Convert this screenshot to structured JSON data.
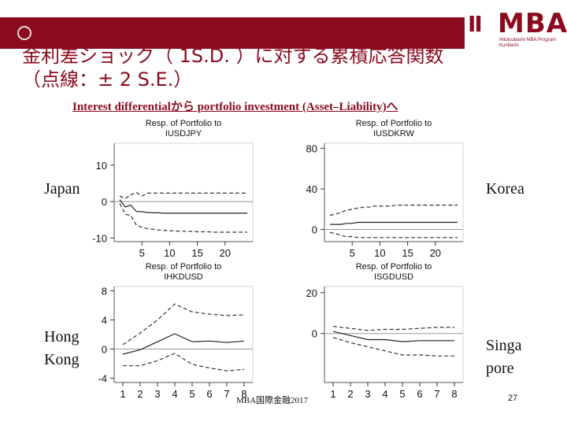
{
  "slide": {
    "title_line1": "金利差ショック（ 1S.D. ）に対する累積応答関数",
    "title_line2": "（点線：± 2 S.E.）",
    "subtitle": "Interest differentialから portfolio investment (Asset–Liability)へ",
    "footer": "MBA国際金融2017",
    "page_number": "27"
  },
  "logo": {
    "mark": "II",
    "text": "MBA",
    "sub": "Hitotsubashi MBA Program\nKunitachi"
  },
  "labels": {
    "japan": "Japan",
    "korea": "Korea",
    "hongkong": "Hong\nKong",
    "singapore": "Singa\npore"
  },
  "colors": {
    "brand": "#8b0a1e",
    "line": "#222222",
    "band": "#333333",
    "zero_line": "#9a9a9a"
  },
  "chart_data": [
    {
      "type": "line",
      "title": "Resp. of Portfolio to IUSDJPY",
      "title_lines": [
        "Resp. of Portfolio to",
        "IUSDJPY"
      ],
      "x": [
        1,
        2,
        3,
        4,
        5,
        6,
        7,
        8,
        9,
        10,
        11,
        12,
        13,
        14,
        15,
        16,
        17,
        18,
        19,
        20,
        21,
        22,
        23,
        24
      ],
      "xlim": [
        0,
        25
      ],
      "ylim": [
        -11,
        16
      ],
      "xticks": [
        "5",
        "10",
        "15",
        "20"
      ],
      "xtick_values": [
        5,
        10,
        15,
        20
      ],
      "yticks": [
        "-10",
        "0",
        "10"
      ],
      "ytick_values": [
        -10,
        0,
        10
      ],
      "series": [
        {
          "name": "response",
          "style": "solid",
          "values": [
            0.5,
            -1.5,
            -1,
            -2.7,
            -2.8,
            -3,
            -3.1,
            -3.1,
            -3.2,
            -3.2,
            -3.2,
            -3.2,
            -3.2,
            -3.2,
            -3.2,
            -3.2,
            -3.2,
            -3.2,
            -3.2,
            -3.2,
            -3.2,
            -3.2,
            -3.2,
            -3.2
          ]
        },
        {
          "name": "upper 2 S.E.",
          "style": "dashed",
          "values": [
            1.5,
            0.8,
            1.8,
            2.5,
            1.5,
            2.3,
            2.3,
            2.3,
            2.3,
            2.3,
            2.3,
            2.3,
            2.3,
            2.3,
            2.3,
            2.3,
            2.3,
            2.3,
            2.3,
            2.3,
            2.3,
            2.3,
            2.3,
            2.3
          ]
        },
        {
          "name": "lower 2 S.E.",
          "style": "dashed",
          "values": [
            -0.5,
            -3.5,
            -3.8,
            -6.5,
            -7.1,
            -7.4,
            -7.6,
            -7.8,
            -7.9,
            -8,
            -8.1,
            -8.1,
            -8.2,
            -8.2,
            -8.3,
            -8.3,
            -8.3,
            -8.4,
            -8.4,
            -8.4,
            -8.4,
            -8.4,
            -8.4,
            -8.4
          ]
        }
      ]
    },
    {
      "type": "line",
      "title": "Resp. of Portfolio to IUSDKRW",
      "title_lines": [
        "Resp. of Portfolio to",
        "IUSDKRW"
      ],
      "x": [
        1,
        2,
        3,
        4,
        5,
        6,
        7,
        8,
        9,
        10,
        11,
        12,
        13,
        14,
        15,
        16,
        17,
        18,
        19,
        20,
        21,
        22,
        23,
        24
      ],
      "xlim": [
        0,
        25
      ],
      "ylim": [
        -12,
        85
      ],
      "xticks": [
        "5",
        "10",
        "15",
        "20"
      ],
      "xtick_values": [
        5,
        10,
        15,
        20
      ],
      "yticks": [
        "0",
        "40",
        "80"
      ],
      "ytick_values": [
        0,
        40,
        80
      ],
      "series": [
        {
          "name": "response",
          "style": "solid",
          "values": [
            5,
            5,
            5,
            6,
            6,
            7,
            7,
            7,
            7,
            7,
            7,
            7,
            7,
            7,
            7,
            7,
            7,
            7,
            7,
            7,
            7,
            7,
            7,
            7
          ]
        },
        {
          "name": "upper 2 S.E.",
          "style": "dashed",
          "values": [
            14,
            15,
            17,
            19,
            20,
            21,
            22,
            22,
            23,
            23,
            23,
            23,
            24,
            24,
            24,
            24,
            24,
            24,
            24,
            24,
            24,
            24,
            24,
            24
          ]
        },
        {
          "name": "lower 2 S.E.",
          "style": "dashed",
          "values": [
            -3,
            -4,
            -6,
            -7,
            -7,
            -8,
            -8,
            -8,
            -8,
            -8,
            -8,
            -8,
            -8,
            -8,
            -8,
            -8,
            -8,
            -8,
            -8,
            -8,
            -8,
            -8,
            -8,
            -8
          ]
        }
      ]
    },
    {
      "type": "line",
      "title": "Resp. of Portfolio to IHKDUSD",
      "title_lines": [
        "Resp. of Portfolio to",
        "IHKDUSD"
      ],
      "x": [
        1,
        2,
        3,
        4,
        5,
        6,
        7,
        8
      ],
      "xlim": [
        0.5,
        8.5
      ],
      "ylim": [
        -4.6,
        8.6
      ],
      "xticks": [
        "1",
        "2",
        "3",
        "4",
        "5",
        "6",
        "7",
        "8"
      ],
      "xtick_values": [
        1,
        2,
        3,
        4,
        5,
        6,
        7,
        8
      ],
      "yticks": [
        "-4",
        "0",
        "4",
        "8"
      ],
      "ytick_values": [
        -4,
        0,
        4,
        8
      ],
      "series": [
        {
          "name": "response",
          "style": "solid",
          "values": [
            -0.7,
            -0.1,
            1,
            2.1,
            1,
            1.1,
            0.9,
            1.1
          ]
        },
        {
          "name": "upper 2 S.E.",
          "style": "dashed",
          "values": [
            0.6,
            2.2,
            4,
            6.2,
            5.1,
            4.8,
            4.6,
            4.7
          ]
        },
        {
          "name": "lower 2 S.E.",
          "style": "dashed",
          "values": [
            -2.3,
            -2.3,
            -1.6,
            -0.6,
            -2.1,
            -2.6,
            -3,
            -2.8
          ]
        }
      ]
    },
    {
      "type": "line",
      "title": "Resp. of Portfolio to ISGDUSD",
      "title_lines": [
        "Resp. of Portfolio to",
        "ISGDUSD"
      ],
      "x": [
        1,
        2,
        3,
        4,
        5,
        6,
        7,
        8
      ],
      "xlim": [
        0.5,
        8.5
      ],
      "ylim": [
        -24,
        23
      ],
      "xticks": [
        "1",
        "2",
        "3",
        "4",
        "5",
        "6",
        "7",
        "8"
      ],
      "xtick_values": [
        1,
        2,
        3,
        4,
        5,
        6,
        7,
        8
      ],
      "yticks": [
        "0",
        "20"
      ],
      "ytick_values": [
        0,
        20
      ],
      "series": [
        {
          "name": "response",
          "style": "solid",
          "values": [
            1,
            -1,
            -3,
            -3,
            -4,
            -3.5,
            -3.5,
            -3.5
          ]
        },
        {
          "name": "upper 2 S.E.",
          "style": "dashed",
          "values": [
            3.5,
            2.5,
            1.5,
            2,
            2,
            2.5,
            3,
            3
          ]
        },
        {
          "name": "lower 2 S.E.",
          "style": "dashed",
          "values": [
            -2,
            -4.5,
            -6.5,
            -8.5,
            -10.5,
            -10.5,
            -11,
            -11
          ]
        }
      ]
    }
  ]
}
